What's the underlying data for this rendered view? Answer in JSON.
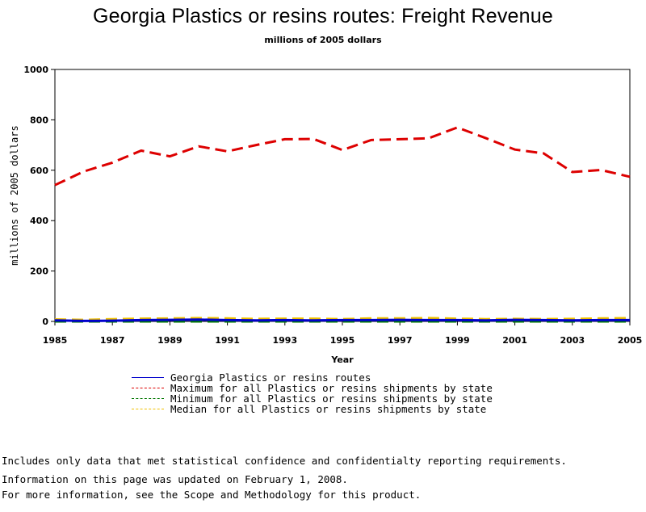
{
  "chart_data": {
    "type": "line",
    "title": "Georgia Plastics or resins routes: Freight Revenue",
    "subtitle": "millions of 2005 dollars",
    "xlabel": "Year",
    "ylabel": "millions of 2005 dollars",
    "xlim": [
      1985,
      2005
    ],
    "ylim": [
      0,
      1000
    ],
    "x_ticks": [
      "1985",
      "1987",
      "1989",
      "1991",
      "1993",
      "1995",
      "1997",
      "1999",
      "2001",
      "2003",
      "2005"
    ],
    "y_ticks": [
      "0",
      "200",
      "400",
      "600",
      "800",
      "1000"
    ],
    "grid": false,
    "legend_position": "bottom",
    "x": [
      1985,
      1986,
      1987,
      1988,
      1989,
      1990,
      1991,
      1992,
      1993,
      1994,
      1995,
      1996,
      1997,
      1998,
      1999,
      2000,
      2001,
      2002,
      2003,
      2004,
      2005
    ],
    "series": [
      {
        "name": "Georgia Plastics or resins routes",
        "color": "#0000cc",
        "style": "solid",
        "values": [
          4,
          2,
          3,
          5,
          6,
          7,
          5,
          4,
          5,
          4,
          5,
          5,
          6,
          5,
          5,
          4,
          6,
          5,
          4,
          5,
          5
        ]
      },
      {
        "name": "Maximum for all Plastics or resins shipments by state",
        "color": "#dd0000",
        "style": "dashed",
        "values": [
          541,
          595,
          630,
          678,
          655,
          695,
          675,
          700,
          723,
          724,
          680,
          720,
          723,
          727,
          770,
          727,
          682,
          667,
          593,
          601,
          574
        ]
      },
      {
        "name": "Minimum for all Plastics or resins shipments by state",
        "color": "#007700",
        "style": "dashed",
        "values": [
          0,
          0,
          0,
          0,
          0,
          0,
          0,
          0,
          0,
          0,
          0,
          0,
          0,
          0,
          0,
          0,
          0,
          0,
          0,
          0,
          0
        ]
      },
      {
        "name": "Median for all Plastics or resins shipments by state",
        "color": "#f0c000",
        "style": "dashed",
        "values": [
          8,
          6,
          9,
          11,
          12,
          13,
          12,
          10,
          11,
          11,
          9,
          12,
          12,
          13,
          11,
          9,
          10,
          9,
          10,
          12,
          13
        ]
      }
    ]
  },
  "notes": {
    "line1": "Includes only data that met statistical confidence and confidentialty reporting requirements.",
    "line2": "For more information, see the Scope and Methodology for this product."
  },
  "footer": {
    "updated": "Information on this page was updated on February 1, 2008."
  }
}
